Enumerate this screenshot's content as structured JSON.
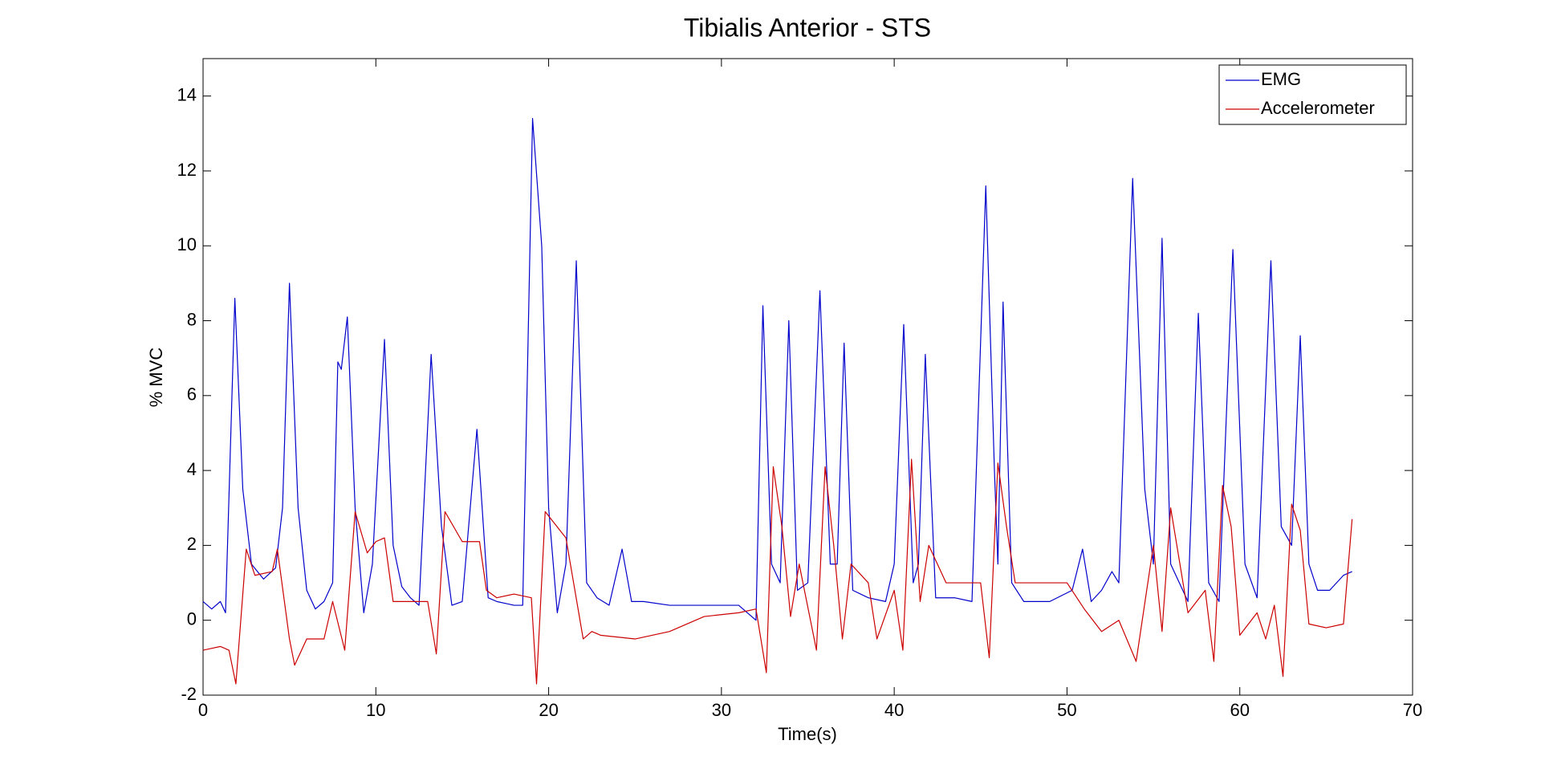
{
  "chart_data": {
    "type": "line",
    "title": "Tibialis Anterior - STS",
    "x_label": "Time(s)",
    "y_label": "% MVC",
    "xlim": [
      0,
      70
    ],
    "xticks": [
      0,
      10,
      20,
      30,
      40,
      50,
      60,
      70
    ],
    "ylim": [
      -2,
      15
    ],
    "yticks": [
      -2,
      0,
      2,
      4,
      6,
      8,
      10,
      12,
      14
    ],
    "grid": false,
    "legend_position": "upper-right",
    "series": [
      {
        "name": "EMG",
        "color": "#0000cc",
        "x": [
          0,
          0.5,
          1.0,
          1.3,
          1.84,
          2.3,
          2.8,
          3.5,
          4.2,
          4.6,
          5.0,
          5.5,
          6.0,
          6.5,
          7.0,
          7.5,
          7.8,
          8.0,
          8.35,
          8.8,
          9.3,
          9.8,
          10.5,
          11.0,
          11.5,
          12.0,
          12.5,
          13.2,
          13.8,
          14.4,
          15.0,
          15.85,
          16.5,
          17.0,
          18.0,
          18.5,
          19.07,
          19.6,
          20.0,
          20.5,
          21.0,
          21.6,
          22.2,
          22.8,
          23.5,
          24.25,
          24.8,
          25.5,
          27,
          29,
          31,
          32,
          32.4,
          32.9,
          33.4,
          33.9,
          34.4,
          35.0,
          35.7,
          36.3,
          36.7,
          37.1,
          37.6,
          38.5,
          39.5,
          40.0,
          40.55,
          41.1,
          41.4,
          41.8,
          42.4,
          43.5,
          44.5,
          45.3,
          45.8,
          46.0,
          46.3,
          46.8,
          47.5,
          49,
          50.3,
          50.9,
          51.4,
          52.0,
          52.6,
          53.0,
          53.8,
          54.5,
          55.0,
          55.5,
          56.0,
          56.5,
          57.0,
          57.6,
          58.2,
          58.8,
          59.6,
          60.3,
          61.0,
          61.8,
          62.4,
          63.0,
          63.5,
          64.0,
          64.5,
          65.2,
          66.0,
          66.5
        ],
        "values": [
          0.5,
          0.3,
          0.5,
          0.2,
          8.6,
          3.5,
          1.5,
          1.1,
          1.4,
          3,
          9.0,
          3,
          0.8,
          0.3,
          0.5,
          1.0,
          6.9,
          6.7,
          8.1,
          3,
          0.2,
          1.5,
          7.5,
          2,
          0.9,
          0.6,
          0.4,
          7.1,
          2.5,
          0.4,
          0.5,
          5.1,
          0.6,
          0.5,
          0.4,
          0.4,
          13.4,
          10,
          3,
          0.2,
          1.5,
          9.6,
          1,
          0.6,
          0.4,
          1.9,
          0.5,
          0.5,
          0.4,
          0.4,
          0.4,
          0,
          8.4,
          1.5,
          1.0,
          8.0,
          0.8,
          1.0,
          8.8,
          1.5,
          1.5,
          7.4,
          0.8,
          0.6,
          0.5,
          1.5,
          7.9,
          1.0,
          1.5,
          7.1,
          0.6,
          0.6,
          0.5,
          11.6,
          4,
          1.5,
          8.5,
          1.0,
          0.5,
          0.5,
          0.8,
          1.9,
          0.5,
          0.8,
          1.3,
          1.0,
          11.8,
          3.5,
          1.5,
          10.2,
          1.5,
          1.0,
          0.5,
          8.2,
          1.0,
          0.5,
          9.9,
          1.5,
          0.6,
          9.6,
          2.5,
          2.0,
          7.6,
          1.5,
          0.8,
          0.8,
          1.2,
          1.3
        ]
      },
      {
        "name": "Accelerometer",
        "color": "#cc0000",
        "x": [
          0,
          1,
          1.5,
          1.9,
          2.5,
          3,
          4,
          4.3,
          5,
          5.3,
          6,
          7,
          7.5,
          8.2,
          8.8,
          9.5,
          10,
          10.5,
          11,
          12,
          13,
          13.5,
          14,
          15,
          16,
          16.4,
          17,
          18,
          19,
          19.3,
          19.8,
          21,
          22,
          22.5,
          23,
          25,
          27,
          29,
          31,
          32,
          32.6,
          33,
          33.5,
          34,
          34.5,
          35.5,
          36,
          36.5,
          37,
          37.5,
          38.5,
          39,
          40,
          40.5,
          41,
          41.5,
          42,
          43,
          45,
          45.5,
          46,
          46.5,
          47,
          50,
          51,
          52,
          53,
          54,
          55,
          55.5,
          56,
          57,
          58,
          58.5,
          59,
          59.5,
          60,
          61,
          61.5,
          62,
          62.5,
          63,
          63.5,
          64,
          65,
          66,
          66.5
        ],
        "values": [
          -0.8,
          -0.7,
          -0.8,
          -1.7,
          1.9,
          1.2,
          1.3,
          1.9,
          -0.5,
          -1.2,
          -0.5,
          -0.5,
          0.5,
          -0.8,
          2.9,
          1.8,
          2.1,
          2.2,
          0.5,
          0.5,
          0.5,
          -0.9,
          2.9,
          2.1,
          2.1,
          0.8,
          0.6,
          0.7,
          0.6,
          -1.7,
          2.9,
          2.2,
          -0.5,
          -0.3,
          -0.4,
          -0.5,
          -0.3,
          0.1,
          0.2,
          0.3,
          -1.4,
          4.1,
          2.5,
          0.1,
          1.5,
          -0.8,
          4.1,
          2,
          -0.5,
          1.5,
          1.0,
          -0.5,
          0.8,
          -0.8,
          4.3,
          0.5,
          2,
          1.0,
          1.0,
          -1.0,
          4.2,
          2.5,
          1.0,
          1.0,
          0.3,
          -0.3,
          0,
          -1.1,
          2,
          -0.3,
          3,
          0.2,
          0.8,
          -1.1,
          3.6,
          2.5,
          -0.4,
          0.2,
          -0.5,
          0.4,
          -1.5,
          3.1,
          2.4,
          -0.1,
          -0.2,
          -0.1,
          2.7
        ]
      }
    ]
  }
}
